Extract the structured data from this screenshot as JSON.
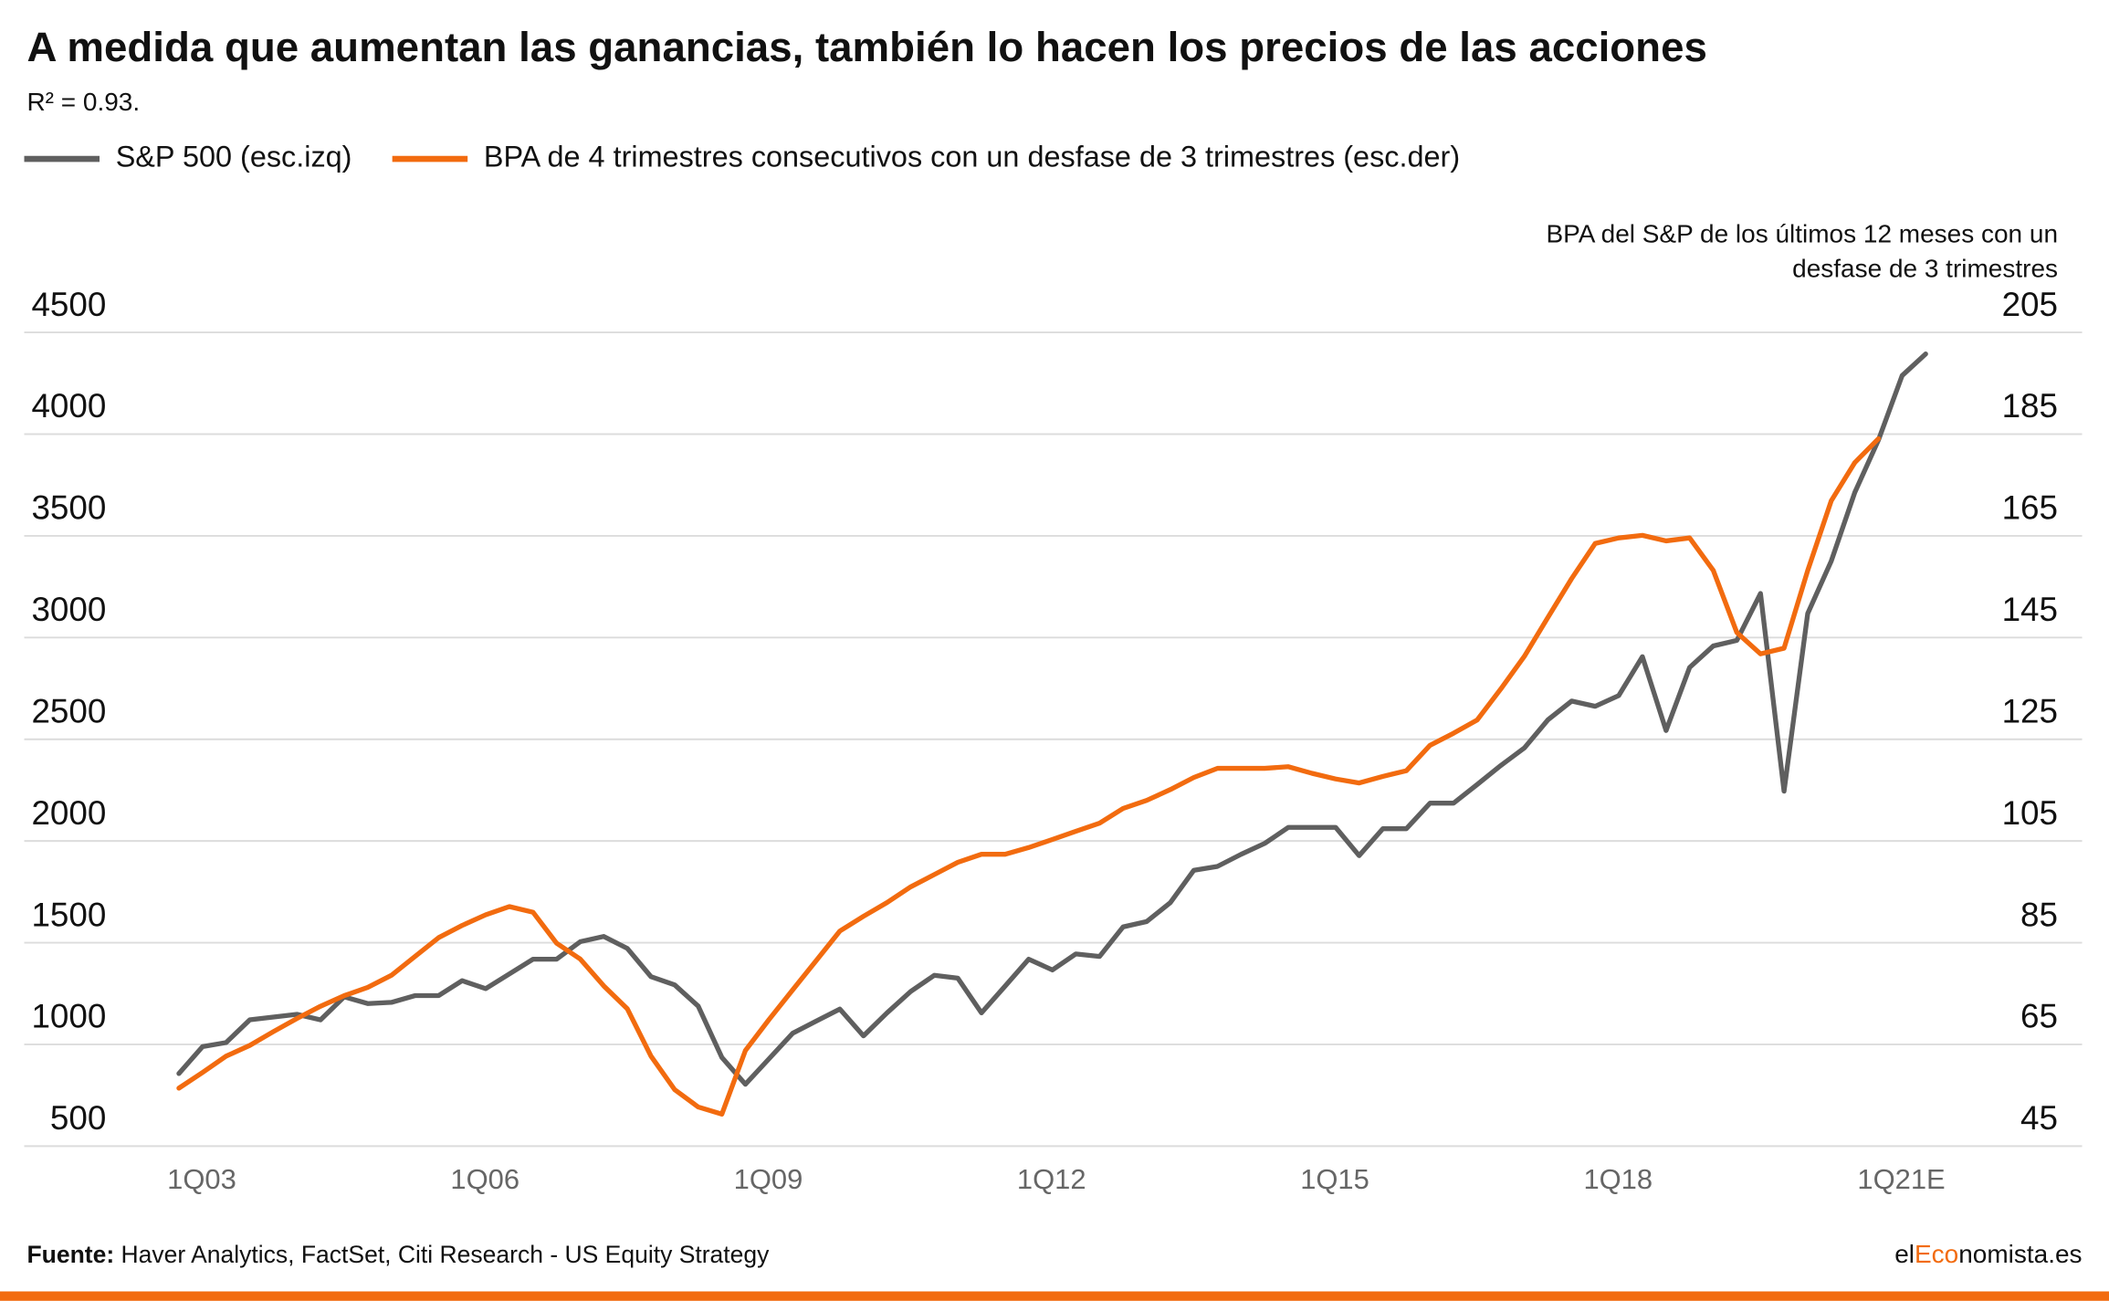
{
  "chart_data": {
    "type": "line",
    "title": "A medida que aumentan las ganancias, también lo hacen los precios de las acciones",
    "subtitle": "R² = 0.93.",
    "y2label": [
      "BPA del S&P de los últimos 12 meses con un",
      "desfase de 3 trimestres"
    ],
    "categories": [
      "1Q03",
      null,
      null,
      null,
      null,
      null,
      null,
      null,
      null,
      null,
      null,
      null,
      "1Q06",
      null,
      null,
      null,
      null,
      null,
      null,
      null,
      null,
      null,
      null,
      null,
      "1Q09",
      null,
      null,
      null,
      null,
      null,
      null,
      null,
      null,
      null,
      null,
      null,
      "1Q12",
      null,
      null,
      null,
      null,
      null,
      null,
      null,
      null,
      null,
      null,
      null,
      "1Q15",
      null,
      null,
      null,
      null,
      null,
      null,
      null,
      null,
      null,
      null,
      null,
      "1Q18",
      null,
      null,
      null,
      null,
      null,
      null,
      null,
      null,
      null,
      null,
      null,
      "1Q21E",
      null,
      null
    ],
    "series": [
      {
        "name": "S&P 500 (esc.izq)",
        "color": "#5f5f5f",
        "values": [
          857,
          989,
          1009,
          1121,
          1135,
          1148,
          1121,
          1234,
          1201,
          1207,
          1240,
          1240,
          1313,
          1274,
          1346,
          1419,
          1419,
          1505,
          1531,
          1472,
          1333,
          1293,
          1188,
          936,
          804,
          930,
          1055,
          1115,
          1174,
          1042,
          1155,
          1260,
          1340,
          1326,
          1155,
          1287,
          1419,
          1366,
          1445,
          1432,
          1578,
          1604,
          1697,
          1856,
          1875,
          1935,
          1988,
          2067,
          2067,
          2067,
          1928,
          2060,
          2060,
          2186,
          2186,
          2278,
          2371,
          2457,
          2596,
          2688,
          2662,
          2715,
          2906,
          2543,
          2853,
          2959,
          2986,
          3217,
          2245,
          3118,
          3376,
          3713,
          3971,
          4288,
          4394
        ]
      },
      {
        "name": "BPA de 4 trimestres consecutivos con un desfase de 3 trimestres (esc.der)",
        "color": "#f26b0f",
        "axis": "y2",
        "values": [
          56.4,
          59.5,
          62.7,
          64.8,
          67.5,
          70.1,
          72.5,
          74.6,
          76.2,
          78.6,
          82.3,
          86.0,
          88.4,
          90.5,
          92.1,
          91.0,
          84.9,
          81.8,
          76.5,
          72.0,
          62.7,
          56.1,
          52.7,
          51.3,
          63.8,
          69.9,
          75.7,
          81.5,
          87.3,
          90.2,
          92.9,
          96.0,
          98.4,
          100.8,
          102.4,
          102.4,
          103.7,
          105.3,
          106.9,
          108.5,
          111.4,
          113.0,
          115.1,
          117.5,
          119.3,
          119.3,
          119.3,
          119.6,
          118.3,
          117.2,
          116.4,
          117.7,
          118.8,
          123.8,
          126.2,
          128.8,
          134.9,
          141.3,
          149.0,
          156.6,
          163.5,
          164.6,
          165.1,
          164.0,
          164.6,
          158.2,
          146.0,
          141.8,
          142.9,
          158.2,
          171.9,
          179.4,
          184.1,
          null,
          null
        ]
      }
    ],
    "ylim": [
      500,
      4500
    ],
    "yticks": [
      500,
      1000,
      1500,
      2000,
      2500,
      3000,
      3500,
      4000,
      4500
    ],
    "y2lim": [
      45,
      205
    ],
    "y2ticks": [
      45,
      65,
      85,
      105,
      125,
      145,
      165,
      185,
      205
    ],
    "grid": true,
    "legend": "top",
    "source_label": "Fuente:",
    "source": "Haver Analytics, FactSet, Citi Research - US Equity Strategy",
    "brand": [
      "el",
      "Eco",
      "nomista.es"
    ]
  }
}
